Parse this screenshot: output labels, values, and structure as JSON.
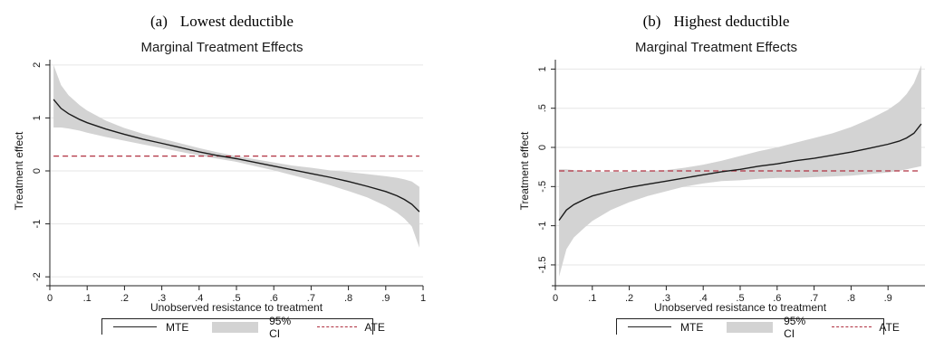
{
  "chart_data": [
    {
      "type": "line",
      "panel_caption": {
        "letter": "(a)",
        "text": "Lowest deductible"
      },
      "title": "Marginal Treatment Effects",
      "xlabel": "Unobserved resistance to treatment",
      "ylabel": "Treatment effect",
      "xlim": [
        0,
        1
      ],
      "ylim": [
        -2.1,
        2.1
      ],
      "xticks": [
        0,
        0.1,
        0.2,
        0.3,
        0.4,
        0.5,
        0.6,
        0.7,
        0.8,
        0.9,
        1
      ],
      "xtick_labels": [
        "0",
        ".1",
        ".2",
        ".3",
        ".4",
        ".5",
        ".6",
        ".7",
        ".8",
        ".9",
        "1"
      ],
      "yticks": [
        -2,
        -1,
        0,
        1,
        2
      ],
      "ytick_labels": [
        "-2",
        "-1",
        "0",
        "1",
        "2"
      ],
      "grid": true,
      "legend_position": "bottom",
      "legend": {
        "mte": "MTE",
        "ci": "95% CI",
        "ate": "ATE"
      },
      "ate": 0.28,
      "x": [
        0.01,
        0.03,
        0.05,
        0.08,
        0.1,
        0.15,
        0.2,
        0.25,
        0.3,
        0.35,
        0.4,
        0.45,
        0.5,
        0.55,
        0.6,
        0.65,
        0.7,
        0.75,
        0.8,
        0.85,
        0.9,
        0.93,
        0.95,
        0.97,
        0.99
      ],
      "series": [
        {
          "name": "MTE",
          "values": [
            1.35,
            1.18,
            1.08,
            0.97,
            0.91,
            0.79,
            0.69,
            0.6,
            0.52,
            0.44,
            0.36,
            0.29,
            0.23,
            0.16,
            0.09,
            0.02,
            -0.05,
            -0.12,
            -0.2,
            -0.29,
            -0.39,
            -0.47,
            -0.54,
            -0.63,
            -0.77
          ]
        },
        {
          "name": "95% CI upper",
          "values": [
            2.0,
            1.62,
            1.43,
            1.24,
            1.14,
            0.95,
            0.81,
            0.7,
            0.61,
            0.52,
            0.43,
            0.35,
            0.28,
            0.22,
            0.16,
            0.1,
            0.06,
            0.01,
            -0.02,
            -0.06,
            -0.1,
            -0.13,
            -0.16,
            -0.2,
            -0.3
          ]
        },
        {
          "name": "95% CI lower",
          "values": [
            0.82,
            0.82,
            0.8,
            0.76,
            0.72,
            0.64,
            0.57,
            0.5,
            0.43,
            0.36,
            0.29,
            0.23,
            0.17,
            0.09,
            0.01,
            -0.08,
            -0.17,
            -0.27,
            -0.38,
            -0.5,
            -0.66,
            -0.79,
            -0.9,
            -1.05,
            -1.45
          ]
        }
      ]
    },
    {
      "type": "line",
      "panel_caption": {
        "letter": "(b)",
        "text": "Highest deductible"
      },
      "title": "Marginal Treatment Effects",
      "xlabel": "Unobserved resistance to treatment",
      "ylabel": "Treatment effect",
      "xlim": [
        0,
        1
      ],
      "ylim": [
        -1.72,
        1.12
      ],
      "xticks": [
        0,
        0.1,
        0.2,
        0.3,
        0.4,
        0.5,
        0.6,
        0.7,
        0.8,
        0.9
      ],
      "xtick_labels": [
        "0",
        ".1",
        ".2",
        ".3",
        ".4",
        ".5",
        ".6",
        ".7",
        ".8",
        ".9"
      ],
      "yticks": [
        -1.5,
        -1,
        -0.5,
        0,
        0.5,
        1
      ],
      "ytick_labels": [
        "-1.5",
        "-1",
        "-.5",
        "0",
        ".5",
        "1"
      ],
      "grid": true,
      "legend_position": "bottom",
      "legend": {
        "mte": "MTE",
        "ci": "95% CI",
        "ate": "ATE"
      },
      "ate": -0.3,
      "x": [
        0.01,
        0.03,
        0.05,
        0.08,
        0.1,
        0.15,
        0.2,
        0.25,
        0.3,
        0.35,
        0.4,
        0.45,
        0.5,
        0.55,
        0.6,
        0.65,
        0.7,
        0.75,
        0.8,
        0.85,
        0.9,
        0.93,
        0.95,
        0.97,
        0.99
      ],
      "series": [
        {
          "name": "MTE",
          "values": [
            -0.93,
            -0.8,
            -0.73,
            -0.66,
            -0.62,
            -0.56,
            -0.51,
            -0.47,
            -0.43,
            -0.39,
            -0.35,
            -0.31,
            -0.28,
            -0.24,
            -0.21,
            -0.17,
            -0.14,
            -0.1,
            -0.06,
            -0.01,
            0.04,
            0.08,
            0.12,
            0.18,
            0.3
          ]
        },
        {
          "name": "95% CI upper",
          "values": [
            -0.28,
            -0.28,
            -0.29,
            -0.3,
            -0.31,
            -0.31,
            -0.31,
            -0.3,
            -0.29,
            -0.26,
            -0.22,
            -0.17,
            -0.11,
            -0.05,
            0.0,
            0.06,
            0.12,
            0.18,
            0.26,
            0.36,
            0.48,
            0.58,
            0.68,
            0.82,
            1.05
          ]
        },
        {
          "name": "95% CI lower",
          "values": [
            -1.65,
            -1.3,
            -1.15,
            -1.02,
            -0.94,
            -0.8,
            -0.7,
            -0.62,
            -0.56,
            -0.5,
            -0.46,
            -0.43,
            -0.42,
            -0.4,
            -0.39,
            -0.39,
            -0.38,
            -0.37,
            -0.36,
            -0.34,
            -0.32,
            -0.3,
            -0.28,
            -0.26,
            -0.24
          ]
        }
      ]
    }
  ],
  "colors": {
    "band": "#d3d3d3",
    "mte_line": "#1a1a1a",
    "ate_line": "#b03040",
    "grid": "#e6e6e6",
    "axis": "#222222"
  }
}
